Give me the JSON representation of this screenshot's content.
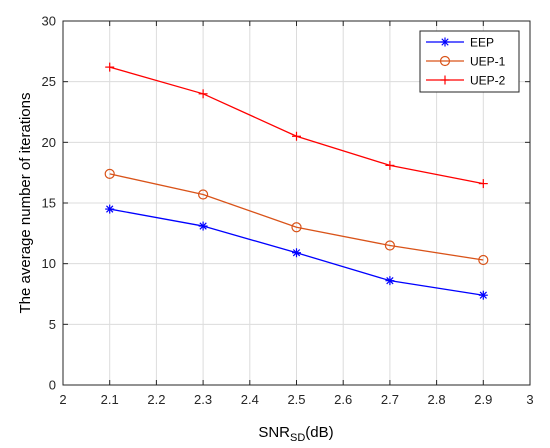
{
  "chart_data": {
    "type": "line",
    "x": [
      2.1,
      2.3,
      2.5,
      2.7,
      2.9
    ],
    "series": [
      {
        "name": "EEP",
        "values": [
          14.5,
          13.1,
          10.9,
          8.6,
          7.4
        ],
        "color": "#0000ff",
        "marker": "asterisk"
      },
      {
        "name": "UEP-1",
        "values": [
          17.4,
          15.7,
          13.0,
          11.5,
          10.3
        ],
        "color": "#d95319",
        "marker": "circle"
      },
      {
        "name": "UEP-2",
        "values": [
          26.2,
          24.0,
          20.5,
          18.1,
          16.6
        ],
        "color": "#ff0000",
        "marker": "plus"
      }
    ],
    "xlim": [
      2,
      3
    ],
    "ylim": [
      0,
      30
    ],
    "xticks": [
      2,
      2.1,
      2.2,
      2.3,
      2.4,
      2.5,
      2.6,
      2.7,
      2.8,
      2.9,
      3
    ],
    "xtick_labels": [
      "2",
      "2.1",
      "2.2",
      "2.3",
      "2.4",
      "2.5",
      "2.6",
      "2.7",
      "2.8",
      "2.9",
      "3"
    ],
    "yticks": [
      0,
      5,
      10,
      15,
      20,
      25,
      30
    ],
    "ytick_labels": [
      "0",
      "5",
      "10",
      "15",
      "20",
      "25",
      "30"
    ],
    "xlabel": {
      "main": "SNR",
      "sub": "SD",
      "unit": "(dB)"
    },
    "ylabel": "The average number of iterations",
    "grid": true,
    "legend_position": "top-right"
  }
}
